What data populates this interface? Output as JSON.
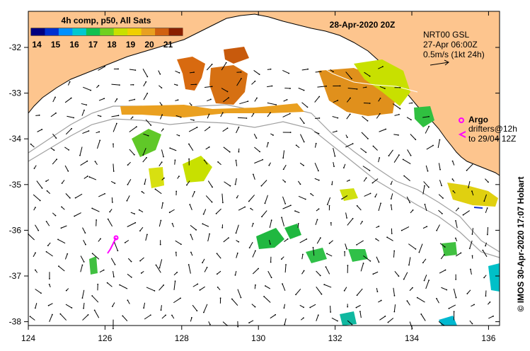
{
  "colorbar": {
    "title": "4h comp, p50, All Sats",
    "ticks": [
      "14",
      "15",
      "16",
      "17",
      "18",
      "19",
      "20",
      "21"
    ],
    "colors": [
      "#000080",
      "#0030d0",
      "#0090ff",
      "#00c8d0",
      "#10c050",
      "#70d020",
      "#c8e000",
      "#f0d000",
      "#e8a020",
      "#d06010",
      "#8a2000"
    ]
  },
  "header": {
    "date": "28-Apr-2020 20Z"
  },
  "current_legend": {
    "line1": "NRT00 GSL",
    "line2": "27-Apr 06:00Z",
    "line3": "0.5m/s (1kt 24h)"
  },
  "argo_legend": {
    "title": "Argo",
    "line1": "drifters@12h",
    "line2": "to 29/04 12Z"
  },
  "credit": "© IMOS 30-Apr-2020 17:07 Hobart",
  "axes": {
    "x_ticks": [
      "124",
      "126",
      "128",
      "130",
      "132",
      "134",
      "136"
    ],
    "y_ticks": [
      "-32",
      "-33",
      "-34",
      "-35",
      "-36",
      "-37",
      "-38"
    ]
  },
  "colors": {
    "land": "#fdc58e",
    "coast": "#000000",
    "contour": "#a0a0a0"
  }
}
